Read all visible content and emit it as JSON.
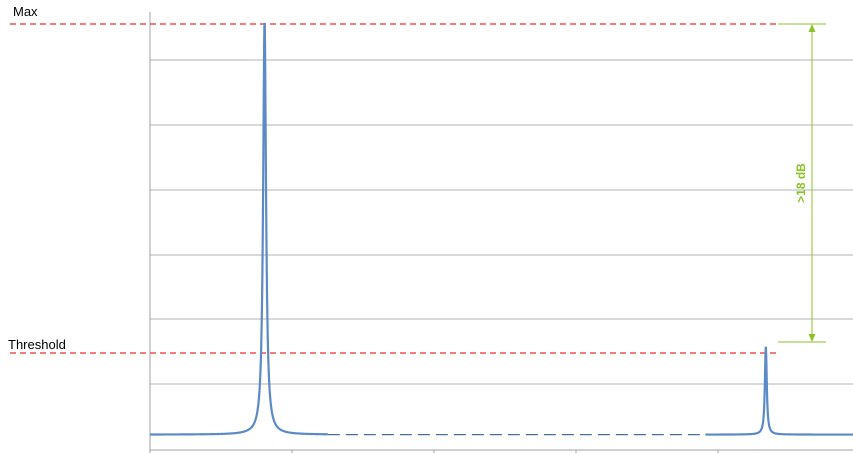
{
  "chart_data": {
    "type": "line",
    "title": "",
    "xlabel": "",
    "ylabel": "",
    "grid": true,
    "reference_lines": [
      {
        "label": "Max",
        "value": 1.0,
        "color": "#e8322b"
      },
      {
        "label": "Threshold",
        "value": 0.0,
        "color": "#e8322b"
      }
    ],
    "annotation": {
      "label": ">18 dB",
      "color": "#8cc22a"
    },
    "series": [
      {
        "color": "#5b8ac7",
        "peaks": [
          {
            "x": 0.163,
            "y": 1.01
          },
          {
            "x": 0.876,
            "y": 0.02
          }
        ],
        "noise_floor": -0.248
      }
    ],
    "gap_dashed_segment": {
      "from_x": 0.253,
      "to_x": 0.79
    }
  }
}
